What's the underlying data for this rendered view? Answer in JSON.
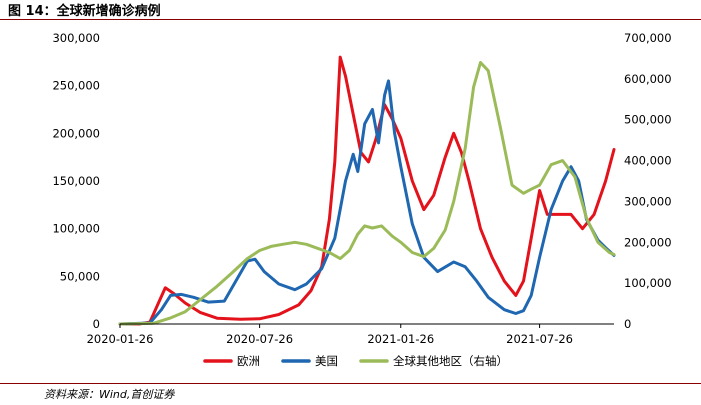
{
  "header": {
    "title": "图 14：全球新增确诊病例"
  },
  "footer": {
    "source": "资料来源：Wind,首创证券"
  },
  "colors": {
    "europe": "#e3121b",
    "usa": "#1f67b1",
    "others": "#9bbb59",
    "rule": "#8b0000"
  },
  "chart_data": {
    "type": "line",
    "title": "全球新增确诊病例",
    "x_ticks": [
      "2020-01-26",
      "2020-07-26",
      "2021-01-26",
      "2021-07-26"
    ],
    "x_range": [
      "2020-01-26",
      "2021-10-31"
    ],
    "y_left": {
      "range": [
        0,
        300000
      ],
      "ticks": [
        "0",
        "50,000",
        "100,000",
        "150,000",
        "200,000",
        "250,000",
        "300,000"
      ]
    },
    "y_right": {
      "range": [
        0,
        700000
      ],
      "ticks": [
        "0",
        "100,000",
        "200,000",
        "300,000",
        "400,000",
        "500,000",
        "600,000",
        "700,000"
      ]
    },
    "grid": false,
    "legend_position": "bottom",
    "series": [
      {
        "name": "欧洲",
        "axis": "left",
        "points": [
          [
            "2020-01-26",
            0
          ],
          [
            "2020-02-20",
            0
          ],
          [
            "2020-03-05",
            2000
          ],
          [
            "2020-03-15",
            20000
          ],
          [
            "2020-03-25",
            38000
          ],
          [
            "2020-04-05",
            32000
          ],
          [
            "2020-04-20",
            22000
          ],
          [
            "2020-05-10",
            12000
          ],
          [
            "2020-06-01",
            6000
          ],
          [
            "2020-07-01",
            5000
          ],
          [
            "2020-07-26",
            5500
          ],
          [
            "2020-08-20",
            10000
          ],
          [
            "2020-09-15",
            20000
          ],
          [
            "2020-10-01",
            35000
          ],
          [
            "2020-10-15",
            60000
          ],
          [
            "2020-10-25",
            110000
          ],
          [
            "2020-11-01",
            170000
          ],
          [
            "2020-11-08",
            280000
          ],
          [
            "2020-11-15",
            260000
          ],
          [
            "2020-11-25",
            220000
          ],
          [
            "2020-12-05",
            180000
          ],
          [
            "2020-12-15",
            170000
          ],
          [
            "2020-12-25",
            195000
          ],
          [
            "2021-01-05",
            230000
          ],
          [
            "2021-01-15",
            215000
          ],
          [
            "2021-01-26",
            195000
          ],
          [
            "2021-02-10",
            150000
          ],
          [
            "2021-02-25",
            120000
          ],
          [
            "2021-03-10",
            135000
          ],
          [
            "2021-03-25",
            175000
          ],
          [
            "2021-04-05",
            200000
          ],
          [
            "2021-04-15",
            180000
          ],
          [
            "2021-04-25",
            150000
          ],
          [
            "2021-05-10",
            100000
          ],
          [
            "2021-05-25",
            70000
          ],
          [
            "2021-06-10",
            45000
          ],
          [
            "2021-06-25",
            30000
          ],
          [
            "2021-07-05",
            45000
          ],
          [
            "2021-07-15",
            90000
          ],
          [
            "2021-07-26",
            140000
          ],
          [
            "2021-08-05",
            115000
          ],
          [
            "2021-08-20",
            115000
          ],
          [
            "2021-09-05",
            115000
          ],
          [
            "2021-09-20",
            100000
          ],
          [
            "2021-10-05",
            115000
          ],
          [
            "2021-10-20",
            150000
          ],
          [
            "2021-10-31",
            183000
          ]
        ]
      },
      {
        "name": "美国",
        "axis": "left",
        "points": [
          [
            "2020-01-26",
            0
          ],
          [
            "2020-03-05",
            1000
          ],
          [
            "2020-03-20",
            15000
          ],
          [
            "2020-04-01",
            30000
          ],
          [
            "2020-04-15",
            31000
          ],
          [
            "2020-05-01",
            28000
          ],
          [
            "2020-05-20",
            23000
          ],
          [
            "2020-06-10",
            24000
          ],
          [
            "2020-06-25",
            45000
          ],
          [
            "2020-07-10",
            66000
          ],
          [
            "2020-07-20",
            68000
          ],
          [
            "2020-08-01",
            55000
          ],
          [
            "2020-08-20",
            42000
          ],
          [
            "2020-09-10",
            36000
          ],
          [
            "2020-09-25",
            42000
          ],
          [
            "2020-10-15",
            58000
          ],
          [
            "2020-11-01",
            90000
          ],
          [
            "2020-11-15",
            150000
          ],
          [
            "2020-11-25",
            178000
          ],
          [
            "2020-12-01",
            160000
          ],
          [
            "2020-12-10",
            210000
          ],
          [
            "2020-12-20",
            225000
          ],
          [
            "2020-12-28",
            190000
          ],
          [
            "2021-01-05",
            240000
          ],
          [
            "2021-01-10",
            255000
          ],
          [
            "2021-01-18",
            200000
          ],
          [
            "2021-01-26",
            165000
          ],
          [
            "2021-02-10",
            105000
          ],
          [
            "2021-02-25",
            70000
          ],
          [
            "2021-03-15",
            55000
          ],
          [
            "2021-04-05",
            65000
          ],
          [
            "2021-04-20",
            60000
          ],
          [
            "2021-05-05",
            45000
          ],
          [
            "2021-05-20",
            28000
          ],
          [
            "2021-06-10",
            15000
          ],
          [
            "2021-06-25",
            11000
          ],
          [
            "2021-07-05",
            14000
          ],
          [
            "2021-07-15",
            30000
          ],
          [
            "2021-07-26",
            70000
          ],
          [
            "2021-08-10",
            120000
          ],
          [
            "2021-08-25",
            150000
          ],
          [
            "2021-09-05",
            165000
          ],
          [
            "2021-09-15",
            150000
          ],
          [
            "2021-09-25",
            110000
          ],
          [
            "2021-10-10",
            88000
          ],
          [
            "2021-10-20",
            80000
          ],
          [
            "2021-10-31",
            72000
          ]
        ]
      },
      {
        "name": "全球其他地区（右轴）",
        "axis": "right",
        "points": [
          [
            "2020-01-26",
            0
          ],
          [
            "2020-03-10",
            2000
          ],
          [
            "2020-04-01",
            15000
          ],
          [
            "2020-04-20",
            30000
          ],
          [
            "2020-05-10",
            60000
          ],
          [
            "2020-05-30",
            90000
          ],
          [
            "2020-06-20",
            125000
          ],
          [
            "2020-07-10",
            160000
          ],
          [
            "2020-07-26",
            180000
          ],
          [
            "2020-08-10",
            190000
          ],
          [
            "2020-08-25",
            195000
          ],
          [
            "2020-09-10",
            200000
          ],
          [
            "2020-09-25",
            195000
          ],
          [
            "2020-10-10",
            185000
          ],
          [
            "2020-10-25",
            175000
          ],
          [
            "2020-11-08",
            160000
          ],
          [
            "2020-11-20",
            180000
          ],
          [
            "2020-12-01",
            220000
          ],
          [
            "2020-12-10",
            240000
          ],
          [
            "2020-12-20",
            235000
          ],
          [
            "2021-01-01",
            240000
          ],
          [
            "2021-01-15",
            215000
          ],
          [
            "2021-01-26",
            200000
          ],
          [
            "2021-02-10",
            175000
          ],
          [
            "2021-02-25",
            165000
          ],
          [
            "2021-03-10",
            185000
          ],
          [
            "2021-03-25",
            230000
          ],
          [
            "2021-04-05",
            300000
          ],
          [
            "2021-04-20",
            430000
          ],
          [
            "2021-05-01",
            580000
          ],
          [
            "2021-05-10",
            640000
          ],
          [
            "2021-05-20",
            620000
          ],
          [
            "2021-06-05",
            480000
          ],
          [
            "2021-06-20",
            340000
          ],
          [
            "2021-07-05",
            320000
          ],
          [
            "2021-07-15",
            330000
          ],
          [
            "2021-07-26",
            340000
          ],
          [
            "2021-08-10",
            390000
          ],
          [
            "2021-08-25",
            400000
          ],
          [
            "2021-09-10",
            360000
          ],
          [
            "2021-09-25",
            260000
          ],
          [
            "2021-10-10",
            200000
          ],
          [
            "2021-10-25",
            175000
          ],
          [
            "2021-10-31",
            170000
          ]
        ]
      }
    ]
  }
}
